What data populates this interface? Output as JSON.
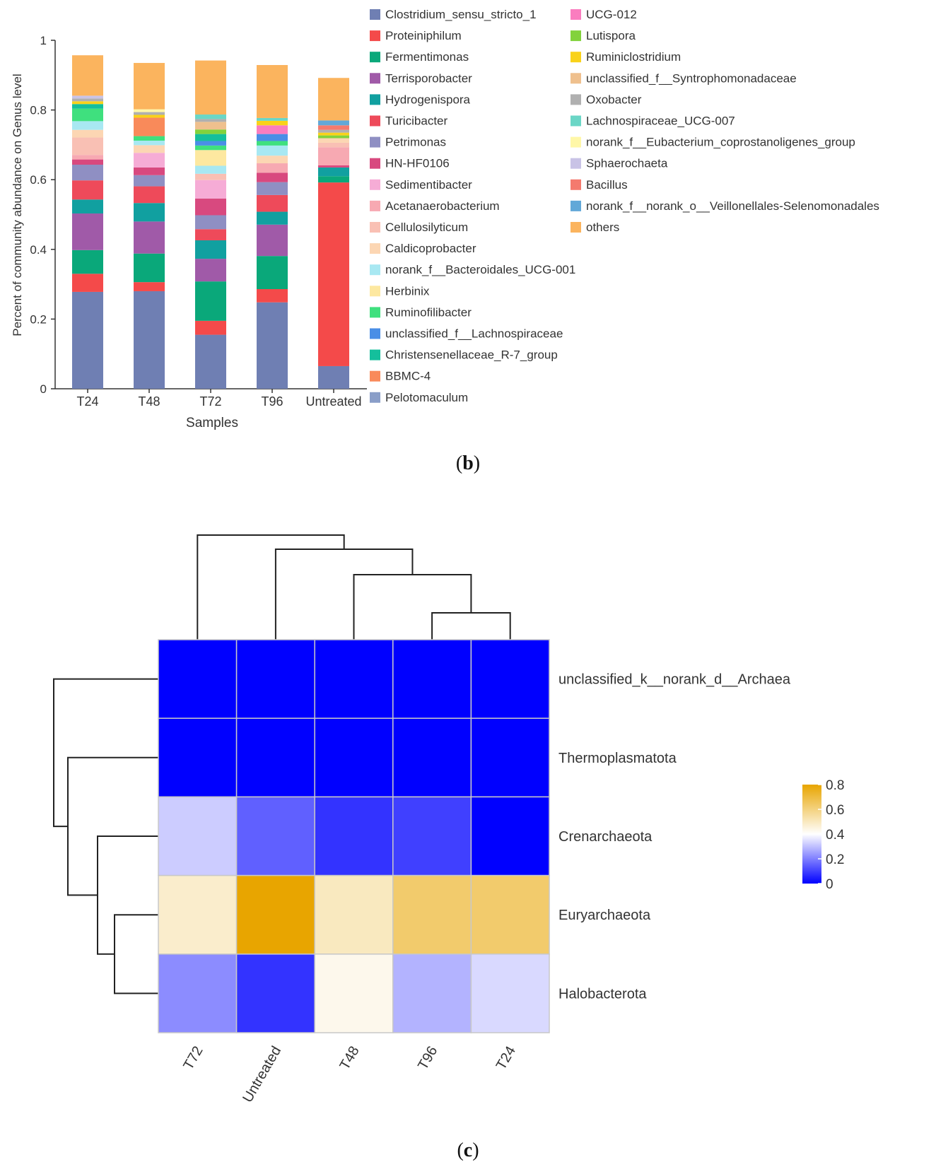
{
  "panels": {
    "b_label": "b",
    "c_label": "c"
  },
  "chart_data": [
    {
      "type": "bar",
      "stacked": true,
      "xlabel": "Samples",
      "ylabel": "Percent of community abundance on Genus level",
      "ylim": [
        0,
        1
      ],
      "yticks": [
        "0",
        "0.2",
        "0.4",
        "0.6",
        "0.8",
        "1"
      ],
      "categories": [
        "T24",
        "T48",
        "T72",
        "T96",
        "Untreated"
      ],
      "legend_position": "right",
      "series": [
        {
          "name": "Clostridium_sensu_stricto_1",
          "color": "#6f7fb3",
          "values": [
            0.278,
            0.28,
            0.155,
            0.248,
            0.065
          ]
        },
        {
          "name": "Proteiniphilum",
          "color": "#f44a4a",
          "values": [
            0.052,
            0.026,
            0.04,
            0.038,
            0.527
          ]
        },
        {
          "name": "Fermentimonas",
          "color": "#0aa87a",
          "values": [
            0.068,
            0.082,
            0.113,
            0.095,
            0.018
          ]
        },
        {
          "name": "Terrisporobacter",
          "color": "#a05aa8",
          "values": [
            0.105,
            0.092,
            0.065,
            0.09,
            0.0
          ]
        },
        {
          "name": "Hydrogenispora",
          "color": "#11a0a0",
          "values": [
            0.04,
            0.053,
            0.053,
            0.037,
            0.025
          ]
        },
        {
          "name": "Turicibacter",
          "color": "#ee4a5a",
          "values": [
            0.055,
            0.048,
            0.032,
            0.048,
            0.0
          ]
        },
        {
          "name": "Petrimonas",
          "color": "#8f8fc3",
          "values": [
            0.045,
            0.032,
            0.04,
            0.037,
            0.0
          ]
        },
        {
          "name": "HN-HF0106",
          "color": "#d8497f",
          "values": [
            0.015,
            0.022,
            0.048,
            0.027,
            0.006
          ]
        },
        {
          "name": "Sedimentibacter",
          "color": "#f6acd6",
          "values": [
            0.0,
            0.042,
            0.053,
            0.0,
            0.0
          ]
        },
        {
          "name": "Acetanaerobacterium",
          "color": "#f7a9b2",
          "values": [
            0.013,
            0.0,
            0.0,
            0.027,
            0.052
          ]
        },
        {
          "name": "Cellulosilyticum",
          "color": "#f9c0b4",
          "values": [
            0.05,
            0.0,
            0.018,
            0.0,
            0.013
          ]
        },
        {
          "name": "Caldicoprobacter",
          "color": "#fcd6b3",
          "values": [
            0.022,
            0.022,
            0.0,
            0.022,
            0.013
          ]
        },
        {
          "name": "norank_f__Bacteroidales_UCG-001",
          "color": "#a8e8f2",
          "values": [
            0.025,
            0.013,
            0.023,
            0.029,
            0.0
          ]
        },
        {
          "name": "Herbinix",
          "color": "#fde8a0",
          "values": [
            0.0,
            0.0,
            0.045,
            0.0,
            0.0
          ]
        },
        {
          "name": "Ruminofilibacter",
          "color": "#3fe07e",
          "values": [
            0.036,
            0.013,
            0.013,
            0.013,
            0.0
          ]
        },
        {
          "name": "unclassified_f__Lachnospiraceae",
          "color": "#4a8ee6",
          "values": [
            0.0,
            0.0,
            0.013,
            0.02,
            0.0
          ]
        },
        {
          "name": "Christensenellaceae_R-7_group",
          "color": "#14bf9c",
          "values": [
            0.013,
            0.0,
            0.02,
            0.0,
            0.0
          ]
        },
        {
          "name": "BBMC-4",
          "color": "#f98a5a",
          "values": [
            0.0,
            0.053,
            0.0,
            0.0,
            0.0
          ]
        },
        {
          "name": "Pelotomaculum",
          "color": "#8a9ec8",
          "values": [
            0.0,
            0.0,
            0.0,
            0.0,
            0.0
          ]
        },
        {
          "name": "UCG-012",
          "color": "#fa7dbf",
          "values": [
            0.0,
            0.0,
            0.0,
            0.025,
            0.0
          ]
        },
        {
          "name": "Lutispora",
          "color": "#82d23c",
          "values": [
            0.0,
            0.0,
            0.013,
            0.0,
            0.008
          ]
        },
        {
          "name": "Ruminiclostridium",
          "color": "#f9d21a",
          "values": [
            0.008,
            0.008,
            0.0,
            0.013,
            0.008
          ]
        },
        {
          "name": "unclassified_f__Syntrophomonadaceae",
          "color": "#efc08e",
          "values": [
            0.0,
            0.0,
            0.022,
            0.0,
            0.0
          ]
        },
        {
          "name": "Oxobacter",
          "color": "#b0b0b0",
          "values": [
            0.008,
            0.008,
            0.008,
            0.0,
            0.008
          ]
        },
        {
          "name": "Lachnospiraceae_UCG-007",
          "color": "#6bd6c6",
          "values": [
            0.0,
            0.0,
            0.013,
            0.008,
            0.0
          ]
        },
        {
          "name": "norank_f__Eubacterium_coprostanoligenes_group",
          "color": "#fff7a8",
          "values": [
            0.0,
            0.008,
            0.0,
            0.0,
            0.0
          ]
        },
        {
          "name": "Sphaerochaeta",
          "color": "#c9c3e6",
          "values": [
            0.008,
            0.0,
            0.0,
            0.0,
            0.0
          ]
        },
        {
          "name": "Bacillus",
          "color": "#f47a6e",
          "values": [
            0.0,
            0.0,
            0.0,
            0.0,
            0.013
          ]
        },
        {
          "name": "norank_f__norank_o__Veillonellales-Selenomonadales",
          "color": "#62a8d8",
          "values": [
            0.0,
            0.0,
            0.0,
            0.0,
            0.014
          ]
        },
        {
          "name": "others",
          "color": "#fbb45e",
          "values": [
            0.116,
            0.133,
            0.155,
            0.152,
            0.122
          ]
        }
      ]
    },
    {
      "type": "heatmap",
      "columns": [
        "T72",
        "Untreated",
        "T48",
        "T96",
        "T24"
      ],
      "rows": [
        "unclassified_k__norank_d__Archaea",
        "Thermoplasmatota",
        "Crenarchaeota",
        "Euryarchaeota",
        "Halobacterota"
      ],
      "values": [
        [
          0.0,
          0.0,
          0.0,
          0.0,
          0.0
        ],
        [
          0.0,
          0.0,
          0.0,
          0.0,
          0.0
        ],
        [
          0.32,
          0.15,
          0.08,
          0.1,
          0.0
        ],
        [
          0.48,
          0.8,
          0.5,
          0.63,
          0.63
        ],
        [
          0.22,
          0.08,
          0.43,
          0.28,
          0.34
        ]
      ],
      "colorscale": {
        "low": "#0000ff",
        "mid": "#ffffff",
        "high": "#e8a500",
        "range": [
          0,
          0.8
        ],
        "midpoint": 0.4
      },
      "colorbar_ticks": [
        "0.8",
        "0.6",
        "0.4",
        "0.2",
        "0"
      ],
      "column_dendrogram": "((T96,T24),T48),Untreated),T72",
      "row_dendrogram": "Archaea,(Thermoplasmatota,(Crenarchaeota,(Euryarchaeota,Halobacterota)))"
    }
  ]
}
